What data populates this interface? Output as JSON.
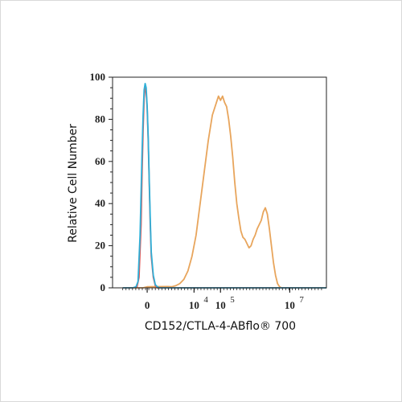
{
  "chart_data": {
    "type": "line",
    "xlabel": "CD152/CTLA-4-ABflo® 700",
    "ylabel": "Relative Cell Number",
    "xlim": [
      -5,
      100
    ],
    "ylim": [
      0,
      100
    ],
    "x_scale": "biexponential",
    "x_tick_labels": [
      {
        "at": 12,
        "base": "0",
        "exp": ""
      },
      {
        "at": 35,
        "base": "10",
        "exp": "4"
      },
      {
        "at": 48,
        "base": "10",
        "exp": "5"
      },
      {
        "at": 82,
        "base": "10",
        "exp": "7"
      }
    ],
    "y_ticks": [
      0,
      20,
      40,
      60,
      80,
      100
    ],
    "grid": false,
    "series": [
      {
        "color": "#e8a55c",
        "points": [
          [
            0,
            0
          ],
          [
            10,
            0
          ],
          [
            12,
            0.5
          ],
          [
            22,
            0.6
          ],
          [
            24,
            0.5
          ],
          [
            26,
            1
          ],
          [
            28,
            2
          ],
          [
            30,
            4
          ],
          [
            32,
            8
          ],
          [
            34,
            15
          ],
          [
            36,
            25
          ],
          [
            38,
            40
          ],
          [
            40,
            55
          ],
          [
            42,
            70
          ],
          [
            44,
            82
          ],
          [
            46,
            88
          ],
          [
            47,
            91
          ],
          [
            48,
            89
          ],
          [
            49,
            91
          ],
          [
            50,
            88
          ],
          [
            51,
            86
          ],
          [
            52,
            80
          ],
          [
            53,
            72
          ],
          [
            54,
            62
          ],
          [
            55,
            50
          ],
          [
            56,
            40
          ],
          [
            57,
            33
          ],
          [
            58,
            27
          ],
          [
            59,
            24
          ],
          [
            60,
            23
          ],
          [
            61,
            21
          ],
          [
            62,
            19
          ],
          [
            63,
            20
          ],
          [
            64,
            23
          ],
          [
            65,
            25
          ],
          [
            66,
            28
          ],
          [
            67,
            30
          ],
          [
            68,
            32
          ],
          [
            69,
            36
          ],
          [
            70,
            38
          ],
          [
            71,
            35
          ],
          [
            72,
            28
          ],
          [
            73,
            20
          ],
          [
            74,
            12
          ],
          [
            75,
            6
          ],
          [
            76,
            2
          ],
          [
            77,
            0.5
          ],
          [
            78,
            0
          ],
          [
            100,
            0
          ]
        ]
      },
      {
        "color": "#e05a5a",
        "points": [
          [
            0,
            0
          ],
          [
            5,
            0
          ],
          [
            7,
            0.5
          ],
          [
            8,
            5
          ],
          [
            9,
            30
          ],
          [
            9.5,
            55
          ],
          [
            10,
            75
          ],
          [
            10.5,
            90
          ],
          [
            11,
            95
          ],
          [
            11.5,
            93
          ],
          [
            12,
            85
          ],
          [
            12.5,
            70
          ],
          [
            13,
            50
          ],
          [
            13.5,
            30
          ],
          [
            14,
            15
          ],
          [
            15,
            5
          ],
          [
            16,
            1
          ],
          [
            17,
            0
          ],
          [
            100,
            0
          ]
        ]
      },
      {
        "color": "#2fb0d8",
        "points": [
          [
            0,
            0
          ],
          [
            5,
            0
          ],
          [
            6.5,
            0.5
          ],
          [
            7.5,
            3
          ],
          [
            8.5,
            25
          ],
          [
            9,
            45
          ],
          [
            9.5,
            65
          ],
          [
            10,
            82
          ],
          [
            10.5,
            94
          ],
          [
            11,
            97
          ],
          [
            11.5,
            95
          ],
          [
            12,
            86
          ],
          [
            12.5,
            72
          ],
          [
            13,
            52
          ],
          [
            13.5,
            33
          ],
          [
            14,
            17
          ],
          [
            15,
            6
          ],
          [
            16,
            1.5
          ],
          [
            17,
            0.5
          ],
          [
            18,
            0
          ],
          [
            100,
            0
          ]
        ]
      }
    ]
  }
}
